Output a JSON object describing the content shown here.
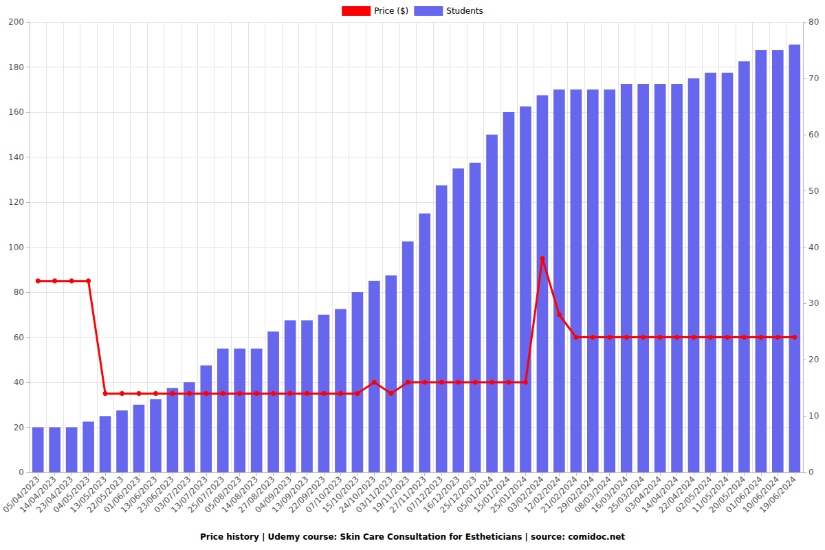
{
  "chart_data": {
    "type": "bar",
    "title": "Price history | Udemy course: Skin Care Consultation for Estheticians | source: comidoc.net",
    "categories": [
      "05/04/2023",
      "14/04/2023",
      "23/04/2023",
      "04/05/2023",
      "13/05/2023",
      "22/05/2023",
      "01/06/2023",
      "13/06/2023",
      "23/06/2023",
      "03/07/2023",
      "13/07/2023",
      "25/07/2023",
      "05/08/2023",
      "14/08/2023",
      "27/08/2023",
      "04/09/2023",
      "13/09/2023",
      "22/09/2023",
      "07/10/2023",
      "15/10/2023",
      "24/10/2023",
      "03/11/2023",
      "19/11/2023",
      "27/11/2023",
      "07/12/2023",
      "16/12/2023",
      "25/12/2023",
      "05/01/2024",
      "15/01/2024",
      "25/01/2024",
      "03/02/2024",
      "12/02/2024",
      "21/02/2024",
      "29/02/2024",
      "08/03/2024",
      "16/03/2024",
      "25/03/2024",
      "03/04/2024",
      "14/04/2024",
      "22/04/2024",
      "02/05/2024",
      "11/05/2024",
      "20/05/2024",
      "01/06/2024",
      "10/06/2024",
      "19/06/2024"
    ],
    "series": [
      {
        "name": "Price ($)",
        "type": "line",
        "color": "#ff0000",
        "marker": "circle",
        "values": [
          85,
          85,
          85,
          85,
          35,
          35,
          35,
          35,
          35,
          35,
          35,
          35,
          35,
          35,
          35,
          35,
          35,
          35,
          35,
          35,
          40,
          35,
          40,
          40,
          40,
          40,
          40,
          40,
          40,
          40,
          95,
          70,
          60,
          60,
          60,
          60,
          60,
          60,
          60,
          60,
          60,
          60,
          60,
          60,
          60,
          60
        ]
      },
      {
        "name": "Students",
        "type": "bar",
        "color": "#6666ee",
        "axis": "y2",
        "values": [
          8,
          8,
          8,
          9,
          10,
          11,
          12,
          13,
          15,
          16,
          19,
          22,
          22,
          22,
          25,
          27,
          27,
          28,
          29,
          32,
          34,
          35,
          41,
          46,
          51,
          54,
          55,
          60,
          64,
          65,
          67,
          68,
          68,
          68,
          68,
          69,
          69,
          69,
          69,
          70,
          71,
          71,
          73,
          75,
          75,
          76
        ]
      }
    ],
    "ylim": [
      0,
      200
    ],
    "yticks": [
      0,
      20,
      40,
      60,
      80,
      100,
      120,
      140,
      160,
      180,
      200
    ],
    "y2lim": [
      0,
      80
    ],
    "y2ticks": [
      0,
      10,
      20,
      30,
      40,
      50,
      60,
      70,
      80
    ],
    "grid": true,
    "legend": "top"
  }
}
